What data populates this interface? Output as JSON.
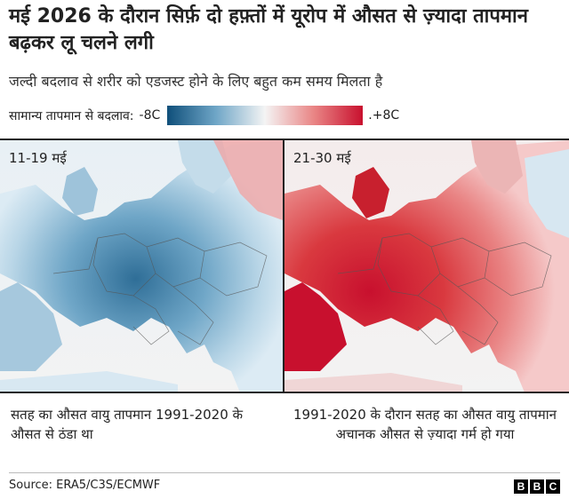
{
  "title": "मई 2026 के दौरान सिर्फ़ दो हफ़्तों में यूरोप में औसत से ज़्यादा तापमान बढ़कर लू चलने लगी",
  "subtitle": "जल्दी बदलाव से शरीर को एडजस्ट होने के लिए बहुत कम समय मिलता है",
  "legend": {
    "label": "सामान्य तापमान से बदलाव:",
    "min": "-8C",
    "max": ".+8C",
    "colors": [
      "#0f4f7a",
      "#6fa6c7",
      "#f4f4f4",
      "#e98585",
      "#c8102e"
    ]
  },
  "panels": [
    {
      "date": "11-19 मई",
      "caption": "सतह का औसत वायु तापमान 1991-2020 के औसत से ठंडा था",
      "tone": "cool"
    },
    {
      "date": "21-30 मई",
      "caption": "1991-2020 के दौरान सतह का औसत वायु तापमान अचानक औसत से ज़्यादा गर्म हो गया",
      "tone": "warm"
    }
  ],
  "source": "Source: ERA5/C3S/ECMWF",
  "brand": [
    "B",
    "B",
    "C"
  ]
}
